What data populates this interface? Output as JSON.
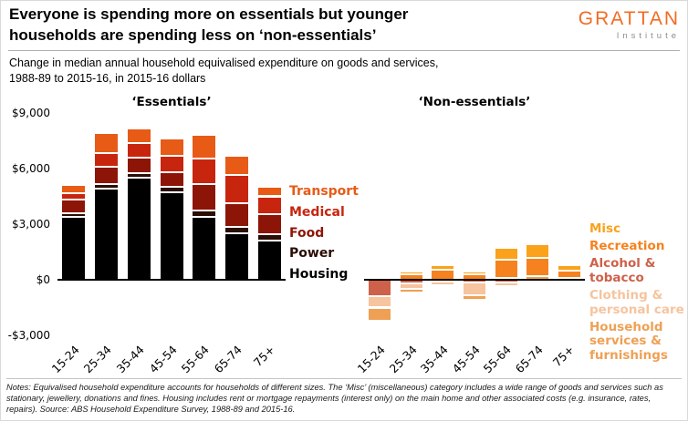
{
  "header": {
    "title_line1": "Everyone is spending more on essentials but younger",
    "title_line2": "households are spending less on ‘non-essentials’",
    "logo_main": "GRATTAN",
    "logo_sub": "Institute",
    "subtitle_line1": "Change in median annual household equivalised expenditure on goods and services,",
    "subtitle_line2": "1988-89 to 2015-16, in 2015-16 dollars"
  },
  "colors": {
    "brand_orange": "#F26C23",
    "axis_black": "#000000"
  },
  "axis": {
    "ymin": -3000,
    "ymax": 9000,
    "yticks": [
      {
        "label": "$9,000",
        "value": 9000
      },
      {
        "label": "$6,000",
        "value": 6000
      },
      {
        "label": "$3,000",
        "value": 3000
      },
      {
        "label": "$0",
        "value": 0
      },
      {
        "label": "-$3,000",
        "value": -3000
      }
    ]
  },
  "chart_data": [
    {
      "type": "bar",
      "panel": "essentials",
      "title": "‘Essentials’",
      "categories": [
        "15-24",
        "25-34",
        "35-44",
        "45-54",
        "55-64",
        "65-74",
        "75+"
      ],
      "ylim": [
        -3000,
        9000
      ],
      "grid": false,
      "legend_position": "right-of-panel",
      "series": [
        {
          "name": "Housing",
          "color": "#000000",
          "values": [
            3400,
            4900,
            5500,
            4700,
            3400,
            2500,
            2100
          ]
        },
        {
          "name": "Power",
          "color": "#2A0D03",
          "values": [
            200,
            250,
            250,
            300,
            350,
            350,
            350
          ]
        },
        {
          "name": "Food",
          "color": "#8D1507",
          "values": [
            750,
            950,
            850,
            800,
            1400,
            1300,
            1100
          ]
        },
        {
          "name": "Medical",
          "color": "#C8250F",
          "values": [
            300,
            750,
            800,
            900,
            1400,
            1500,
            950
          ]
        },
        {
          "name": "Transport",
          "color": "#E75B17",
          "values": [
            450,
            1050,
            750,
            900,
            1250,
            1050,
            500
          ]
        }
      ]
    },
    {
      "type": "bar",
      "panel": "non-essentials",
      "title": "‘Non-essentials’",
      "categories": [
        "15-24",
        "25-34",
        "35-44",
        "45-54",
        "55-64",
        "65-74",
        "75+"
      ],
      "ylim": [
        -3000,
        9000
      ],
      "grid": false,
      "legend_position": "right-of-panel",
      "negative_order": [
        "Alcohol & tobacco",
        "Clothing & personal care",
        "Household services & furnishings"
      ],
      "series": [
        {
          "name": "Household services & furnishings",
          "color": "#EFA054",
          "values": [
            -700,
            -200,
            -100,
            -250,
            100,
            200,
            100
          ]
        },
        {
          "name": "Clothing & personal care",
          "color": "#F6C49E",
          "values": [
            -600,
            -300,
            -200,
            -700,
            -200,
            -100,
            -100
          ]
        },
        {
          "name": "Alcohol & tobacco",
          "color": "#CE6149",
          "values": [
            -900,
            -200,
            -100,
            -150,
            -150,
            -50,
            -50
          ]
        },
        {
          "name": "Recreation",
          "color": "#F5821F",
          "values": [
            0,
            300,
            550,
            300,
            1000,
            1000,
            400
          ]
        },
        {
          "name": "Misc",
          "color": "#FAA21B",
          "values": [
            100,
            150,
            250,
            150,
            600,
            700,
            300
          ]
        }
      ]
    }
  ],
  "notes": "Notes: Equivalised household expenditure accounts for households of different sizes. The ‘Misc’ (miscellaneous) category includes a wide range of goods and services such as stationary, jewellery, donations and fines. Housing includes rent or mortgage repayments (interest only) on the main home and other associated costs (e.g. insurance, rates, repairs). Source: ABS Household Expenditure Survey, 1988-89 and 2015-16."
}
